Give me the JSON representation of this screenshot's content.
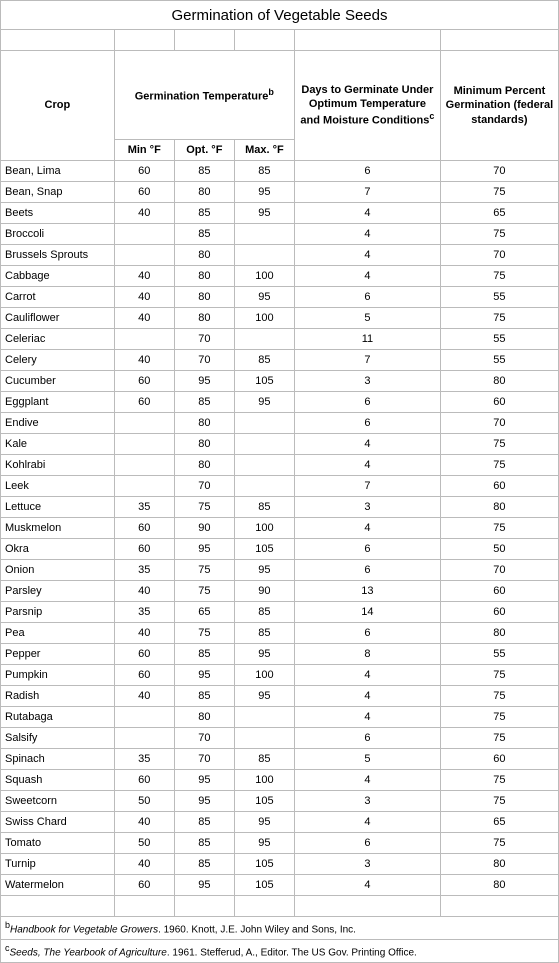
{
  "title": "Germination of Vegetable Seeds",
  "headers": {
    "crop": "Crop",
    "germ_temp": "Germination Temperature",
    "germ_temp_sup": "b",
    "min_f": "Min °F",
    "opt_f": "Opt. °F",
    "max_f": "Max. °F",
    "days": "Days to Germinate Under Optimum Temperature and Moisture Conditions",
    "days_sup": "c",
    "min_pct": "Minimum Percent Germination (federal standards)"
  },
  "col_widths": {
    "crop": 106,
    "temp": 56,
    "days": 136,
    "min_germ": 110
  },
  "rows": [
    {
      "crop": "Bean, Lima",
      "min": "60",
      "opt": "85",
      "max": "85",
      "days": "6",
      "pct": "70"
    },
    {
      "crop": "Bean, Snap",
      "min": "60",
      "opt": "80",
      "max": "95",
      "days": "7",
      "pct": "75"
    },
    {
      "crop": "Beets",
      "min": "40",
      "opt": "85",
      "max": "95",
      "days": "4",
      "pct": "65"
    },
    {
      "crop": "Broccoli",
      "min": "",
      "opt": "85",
      "max": "",
      "days": "4",
      "pct": "75"
    },
    {
      "crop": "Brussels Sprouts",
      "min": "",
      "opt": "80",
      "max": "",
      "days": "4",
      "pct": "70"
    },
    {
      "crop": "Cabbage",
      "min": "40",
      "opt": "80",
      "max": "100",
      "days": "4",
      "pct": "75"
    },
    {
      "crop": "Carrot",
      "min": "40",
      "opt": "80",
      "max": "95",
      "days": "6",
      "pct": "55"
    },
    {
      "crop": "Cauliflower",
      "min": "40",
      "opt": "80",
      "max": "100",
      "days": "5",
      "pct": "75"
    },
    {
      "crop": "Celeriac",
      "min": "",
      "opt": "70",
      "max": "",
      "days": "11",
      "pct": "55"
    },
    {
      "crop": "Celery",
      "min": "40",
      "opt": "70",
      "max": "85",
      "days": "7",
      "pct": "55"
    },
    {
      "crop": "Cucumber",
      "min": "60",
      "opt": "95",
      "max": "105",
      "days": "3",
      "pct": "80"
    },
    {
      "crop": "Eggplant",
      "min": "60",
      "opt": "85",
      "max": "95",
      "days": "6",
      "pct": "60"
    },
    {
      "crop": "Endive",
      "min": "",
      "opt": "80",
      "max": "",
      "days": "6",
      "pct": "70"
    },
    {
      "crop": "Kale",
      "min": "",
      "opt": "80",
      "max": "",
      "days": "4",
      "pct": "75"
    },
    {
      "crop": "Kohlrabi",
      "min": "",
      "opt": "80",
      "max": "",
      "days": "4",
      "pct": "75"
    },
    {
      "crop": "Leek",
      "min": "",
      "opt": "70",
      "max": "",
      "days": "7",
      "pct": "60"
    },
    {
      "crop": "Lettuce",
      "min": "35",
      "opt": "75",
      "max": "85",
      "days": "3",
      "pct": "80"
    },
    {
      "crop": "Muskmelon",
      "min": "60",
      "opt": "90",
      "max": "100",
      "days": "4",
      "pct": "75"
    },
    {
      "crop": "Okra",
      "min": "60",
      "opt": "95",
      "max": "105",
      "days": "6",
      "pct": "50"
    },
    {
      "crop": "Onion",
      "min": "35",
      "opt": "75",
      "max": "95",
      "days": "6",
      "pct": "70"
    },
    {
      "crop": "Parsley",
      "min": "40",
      "opt": "75",
      "max": "90",
      "days": "13",
      "pct": "60"
    },
    {
      "crop": "Parsnip",
      "min": "35",
      "opt": "65",
      "max": "85",
      "days": "14",
      "pct": "60"
    },
    {
      "crop": "Pea",
      "min": "40",
      "opt": "75",
      "max": "85",
      "days": "6",
      "pct": "80"
    },
    {
      "crop": "Pepper",
      "min": "60",
      "opt": "85",
      "max": "95",
      "days": "8",
      "pct": "55"
    },
    {
      "crop": "Pumpkin",
      "min": "60",
      "opt": "95",
      "max": "100",
      "days": "4",
      "pct": "75"
    },
    {
      "crop": "Radish",
      "min": "40",
      "opt": "85",
      "max": "95",
      "days": "4",
      "pct": "75"
    },
    {
      "crop": "Rutabaga",
      "min": "",
      "opt": "80",
      "max": "",
      "days": "4",
      "pct": "75"
    },
    {
      "crop": "Salsify",
      "min": "",
      "opt": "70",
      "max": "",
      "days": "6",
      "pct": "75"
    },
    {
      "crop": "Spinach",
      "min": "35",
      "opt": "70",
      "max": "85",
      "days": "5",
      "pct": "60"
    },
    {
      "crop": "Squash",
      "min": "60",
      "opt": "95",
      "max": "100",
      "days": "4",
      "pct": "75"
    },
    {
      "crop": "Sweetcorn",
      "min": "50",
      "opt": "95",
      "max": "105",
      "days": "3",
      "pct": "75"
    },
    {
      "crop": "Swiss Chard",
      "min": "40",
      "opt": "85",
      "max": "95",
      "days": "4",
      "pct": "65"
    },
    {
      "crop": "Tomato",
      "min": "50",
      "opt": "85",
      "max": "95",
      "days": "6",
      "pct": "75"
    },
    {
      "crop": "Turnip",
      "min": "40",
      "opt": "85",
      "max": "105",
      "days": "3",
      "pct": "80"
    },
    {
      "crop": "Watermelon",
      "min": "60",
      "opt": "95",
      "max": "105",
      "days": "4",
      "pct": "80"
    }
  ],
  "footnotes": [
    {
      "sup": "b",
      "book": "Handbook for Vegetable Growers",
      "rest": ". 1960. Knott, J.E. John Wiley and Sons, Inc."
    },
    {
      "sup": "c",
      "book": "Seeds, The Yearbook of Agriculture",
      "rest": ". 1961. Stefferud, A., Editor. The US Gov. Printing Office."
    }
  ],
  "style": {
    "border_color": "#bbbbbb",
    "font_family": "Verdana",
    "title_fontsize": 15,
    "header_fontsize": 11,
    "body_fontsize": 11,
    "footnote_fontsize": 10
  }
}
